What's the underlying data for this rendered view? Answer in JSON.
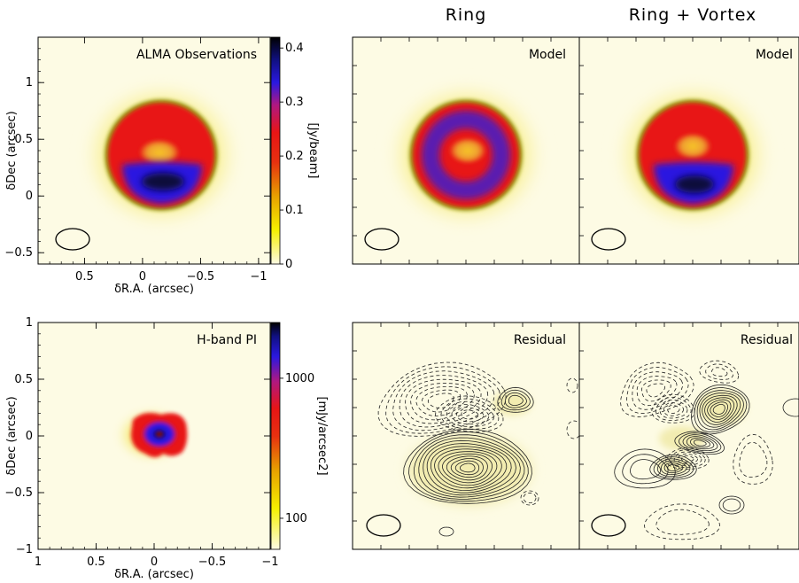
{
  "titles": {
    "column_ring": "Ring",
    "column_ring_vortex": "Ring + Vortex"
  },
  "labels": {
    "alma": "ALMA Observations",
    "hband": "H-band PI",
    "model": "Model",
    "residual": "Residual"
  },
  "colorbars": {
    "alma": {
      "unit": "[Jy/beam]",
      "ticks": [
        "0.4",
        "0.3",
        "0.2",
        "0.1",
        "0"
      ],
      "tick_values": [
        0.4,
        0.3,
        0.2,
        0.1,
        0
      ],
      "range": [
        0,
        0.42
      ]
    },
    "hband": {
      "unit": "[mJy/arcsec2]",
      "ticks": [
        "1000",
        "100"
      ],
      "tick_values": [
        1000,
        100
      ],
      "scale": "log",
      "range": [
        60,
        2500
      ]
    }
  },
  "colors": {
    "map_low": "#fdfbe4",
    "map_yellow": "#f5e000",
    "map_red": "#e81515",
    "map_blue": "#1a15d0",
    "map_black": "#000000"
  },
  "chart_data": [
    {
      "type": "heatmap",
      "name": "ALMA Observations",
      "xlabel": "δR.A. (arcsec)",
      "ylabel": "δDec (arcsec)",
      "xlim": [
        0.9,
        -1.1
      ],
      "ylim": [
        -0.6,
        1.4
      ],
      "xticks": [
        "0.5",
        "0",
        "−0.5",
        "−1"
      ],
      "xtick_values": [
        0.5,
        0,
        -0.5,
        -1
      ],
      "yticks": [
        "1",
        "0.5",
        "0",
        "−0.5"
      ],
      "ytick_values": [
        1,
        0.5,
        0,
        -0.5
      ],
      "beam": {
        "x": 0.63,
        "y": -0.37,
        "major": 0.3,
        "minor": 0.2
      },
      "emission": {
        "ring_center": [
          -0.08,
          0.37
        ],
        "ring_radius": 0.42,
        "peak_jy_beam": 0.4,
        "peak_position": [
          -0.1,
          0.15
        ]
      }
    },
    {
      "type": "heatmap",
      "name": "Ring Model",
      "xlim": [
        0.9,
        -1.1
      ],
      "ylim": [
        -0.6,
        1.4
      ],
      "emission": {
        "ring_center": [
          -0.08,
          0.37
        ],
        "ring_radius": 0.42
      }
    },
    {
      "type": "heatmap",
      "name": "Ring + Vortex Model",
      "xlim": [
        0.9,
        -1.1
      ],
      "ylim": [
        -0.6,
        1.4
      ],
      "emission": {
        "ring_center": [
          -0.08,
          0.37
        ],
        "ring_radius": 0.42
      }
    },
    {
      "type": "heatmap",
      "name": "H-band PI",
      "xlabel": "δR.A. (arcsec)",
      "ylabel": "δDec (arcsec)",
      "xlim": [
        1,
        -1
      ],
      "ylim": [
        -1,
        1
      ],
      "xticks": [
        "1",
        "0.5",
        "0",
        "−0.5",
        "−1"
      ],
      "xtick_values": [
        1,
        0.5,
        0,
        -0.5,
        -1
      ],
      "yticks": [
        "1",
        "0.5",
        "0",
        "−0.5",
        "−1"
      ],
      "ytick_values": [
        1,
        0.5,
        0,
        -0.5,
        -1
      ]
    },
    {
      "type": "heatmap",
      "name": "Ring Residual",
      "xlim": [
        1,
        -1
      ],
      "ylim": [
        -1,
        1
      ]
    },
    {
      "type": "heatmap",
      "name": "Ring + Vortex Residual",
      "xlim": [
        1,
        -1
      ],
      "ylim": [
        -1,
        1
      ]
    }
  ]
}
